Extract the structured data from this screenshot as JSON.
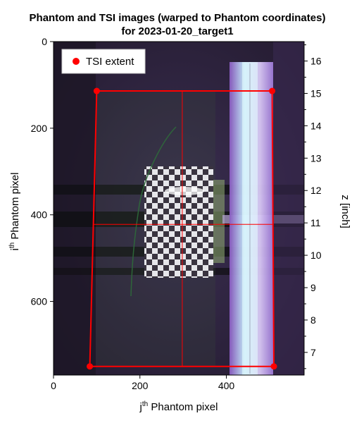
{
  "chart_data": {
    "type": "image-overlay",
    "title_line1": "Phantom and TSI images (warped to Phantom coordinates)",
    "title_line2": "for 2023-01-20_target1",
    "xlabel_sup": "th",
    "xlabel_prefix": "j",
    "xlabel_suffix": " Phantom pixel",
    "ylabel_prefix": "i",
    "ylabel_sup": "th",
    "ylabel_suffix": " Phantom pixel",
    "y2label": "z [inch]",
    "xlim": [
      0,
      580
    ],
    "ylim": [
      0,
      770
    ],
    "y2lim": [
      6.3,
      16.6
    ],
    "x_ticks": [
      "0",
      "200",
      "400"
    ],
    "y_ticks": [
      "0",
      "200",
      "400",
      "600"
    ],
    "y2_ticks": [
      "16",
      "15",
      "14",
      "13",
      "12",
      "11",
      "10",
      "9",
      "8",
      "7"
    ],
    "legend": {
      "label": "TSI extent",
      "location": "top-left",
      "color": "#ff0000"
    },
    "tsi_extent_corners": [
      {
        "j": 100,
        "i": 114
      },
      {
        "j": 506,
        "i": 114
      },
      {
        "j": 510,
        "i": 750
      },
      {
        "j": 84,
        "i": 750
      }
    ],
    "tsi_center_lines": {
      "j": 298,
      "i": 422
    },
    "background_color": "#2a2038",
    "accent_color": "#ff0000"
  }
}
